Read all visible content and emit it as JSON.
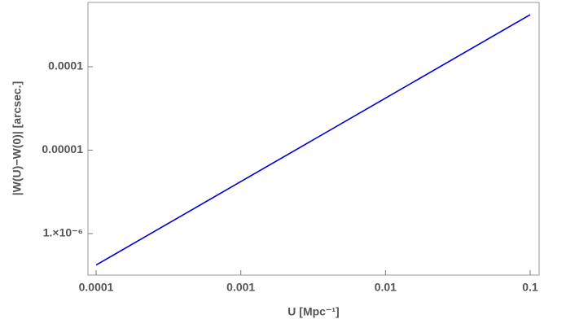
{
  "chart_data": {
    "type": "line",
    "x_label": "U [Mpc⁻¹]",
    "y_label": "|W(U)−W(0)| [arcsec.]",
    "x": [
      0.0001,
      0.001,
      0.01,
      0.1
    ],
    "series": [
      {
        "color": "#0000d0",
        "values": [
          4.2e-07,
          4.2e-06,
          4.2e-05,
          0.00042
        ]
      }
    ],
    "xlim": [
      8.78e-05,
      0.1153
    ],
    "ylim": [
      3.18e-07,
      0.000589
    ],
    "xticks": [
      0.0001,
      0.001,
      0.01,
      0.1
    ],
    "yticks": [
      {
        "value": 1e-06,
        "label": "1.×10⁻⁶"
      },
      1e-05,
      0.0001
    ],
    "xscale": "log",
    "yscale": "log",
    "grid": false
  }
}
